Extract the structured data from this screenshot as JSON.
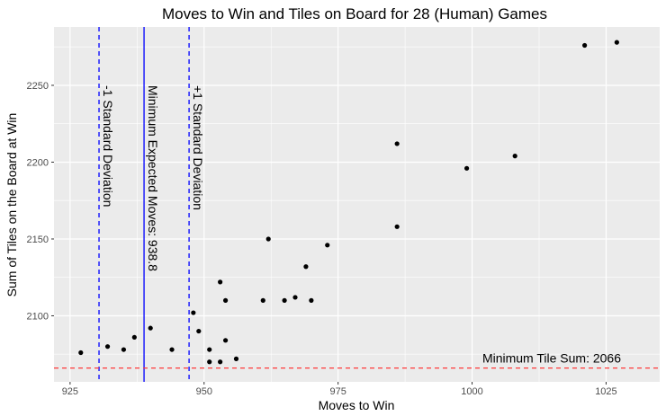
{
  "chart_data": {
    "type": "scatter",
    "title": "Moves to Win and Tiles on Board for 28 (Human) Games",
    "xlabel": "Moves to Win",
    "ylabel": "Sum of Tiles on the Board at Win",
    "xlim": [
      922,
      1035
    ],
    "ylim": [
      2057,
      2288
    ],
    "x_ticks": [
      925,
      950,
      975,
      1000,
      1025
    ],
    "y_ticks": [
      2100,
      2150,
      2200,
      2250
    ],
    "grid": true,
    "colors": {
      "panel": "#ebebeb",
      "grid": "#ffffff",
      "points": "#000000",
      "vlines": "#0000ff",
      "hline": "#ff3b3b"
    },
    "points": [
      {
        "x": 927,
        "y": 2076
      },
      {
        "x": 932,
        "y": 2080
      },
      {
        "x": 935,
        "y": 2078
      },
      {
        "x": 937,
        "y": 2086
      },
      {
        "x": 940,
        "y": 2092
      },
      {
        "x": 944,
        "y": 2078
      },
      {
        "x": 948,
        "y": 2102
      },
      {
        "x": 949,
        "y": 2090
      },
      {
        "x": 951,
        "y": 2078
      },
      {
        "x": 951,
        "y": 2070
      },
      {
        "x": 953,
        "y": 2122
      },
      {
        "x": 953,
        "y": 2070
      },
      {
        "x": 954,
        "y": 2110
      },
      {
        "x": 954,
        "y": 2084
      },
      {
        "x": 956,
        "y": 2072
      },
      {
        "x": 961,
        "y": 2110
      },
      {
        "x": 962,
        "y": 2150
      },
      {
        "x": 965,
        "y": 2110
      },
      {
        "x": 967,
        "y": 2112
      },
      {
        "x": 969,
        "y": 2132
      },
      {
        "x": 970,
        "y": 2110
      },
      {
        "x": 973,
        "y": 2146
      },
      {
        "x": 986,
        "y": 2212
      },
      {
        "x": 986,
        "y": 2158
      },
      {
        "x": 999,
        "y": 2196
      },
      {
        "x": 1008,
        "y": 2204
      },
      {
        "x": 1021,
        "y": 2276
      },
      {
        "x": 1027,
        "y": 2278
      }
    ],
    "vlines": [
      {
        "x": 930.4,
        "style": "dashed",
        "label": "-1 Standard Deviation"
      },
      {
        "x": 938.8,
        "style": "solid",
        "label": "Minimum Expected Moves: 938.8"
      },
      {
        "x": 947.2,
        "style": "dashed",
        "label": "+1 Standard Deviation"
      }
    ],
    "hline": {
      "y": 2066,
      "style": "dashed",
      "label": "Minimum Tile Sum: 2066"
    }
  }
}
